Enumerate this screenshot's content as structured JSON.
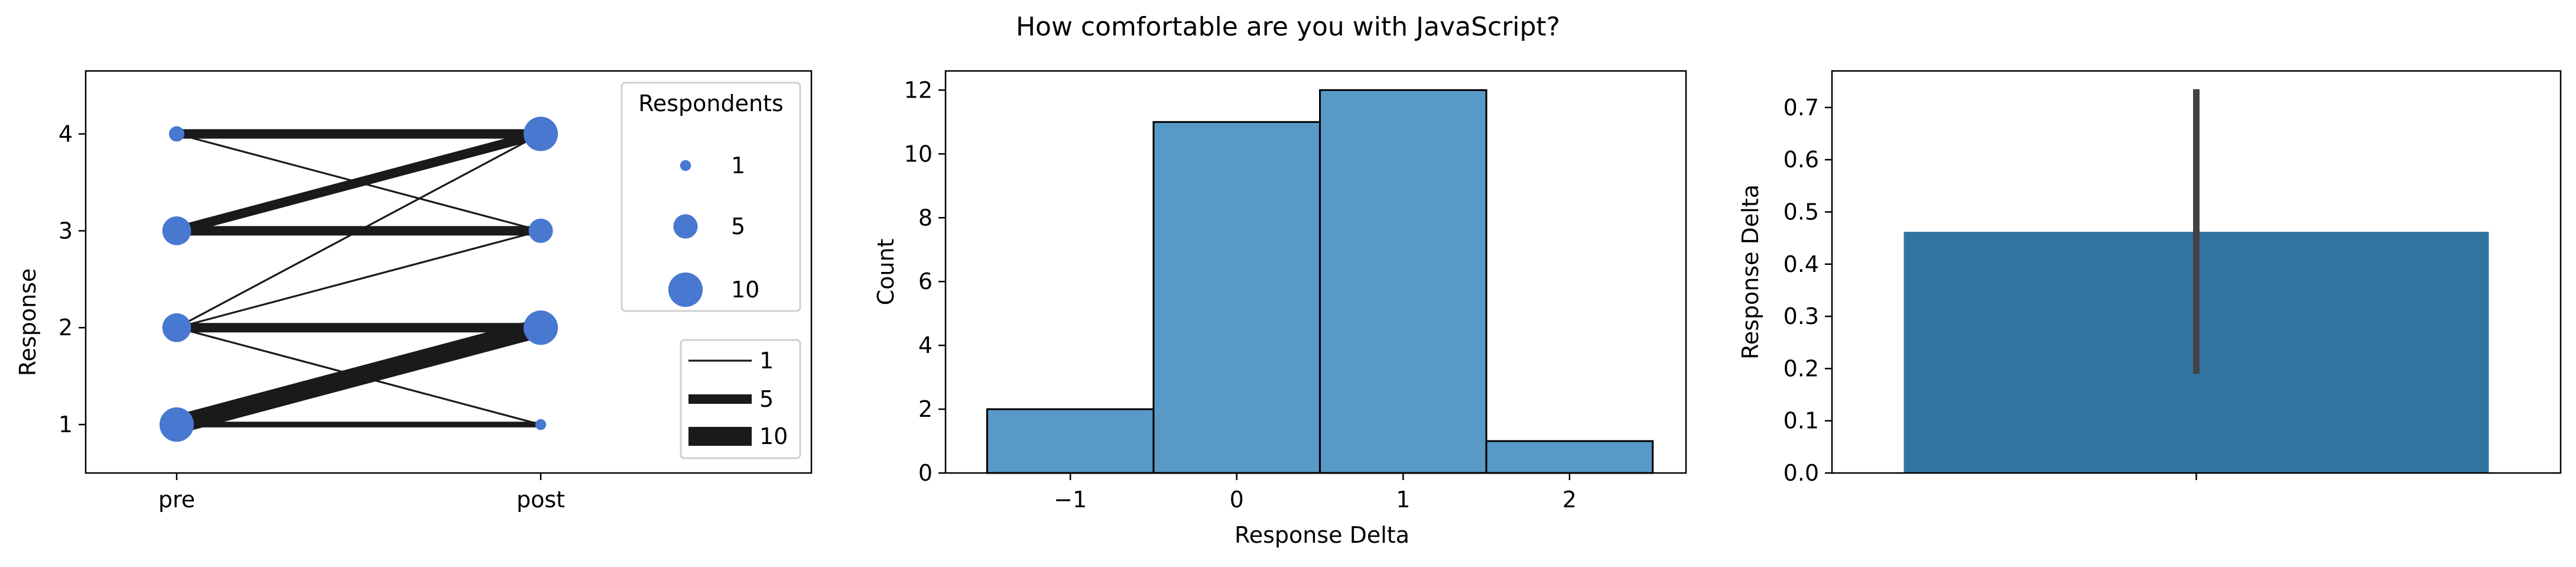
{
  "figure": {
    "title": "How comfortable are you with JavaScript?"
  },
  "colors": {
    "bubble": "#4878d0",
    "line": "#1a1a1a",
    "hist": "#5799c7",
    "bar": "#3274a1",
    "errbar": "#424242"
  },
  "chart_data": [
    {
      "type": "scatter",
      "x_categories": [
        "pre",
        "post"
      ],
      "ylabel": "Response",
      "xlabel": "",
      "ylim": [
        0.5,
        4.65
      ],
      "yticks": [
        1,
        2,
        3,
        4
      ],
      "points": [
        {
          "x": "pre",
          "y": 4,
          "count": 2
        },
        {
          "x": "pre",
          "y": 3,
          "count": 7
        },
        {
          "x": "pre",
          "y": 2,
          "count": 7
        },
        {
          "x": "pre",
          "y": 1,
          "count": 10
        },
        {
          "x": "post",
          "y": 4,
          "count": 10
        },
        {
          "x": "post",
          "y": 3,
          "count": 5
        },
        {
          "x": "post",
          "y": 2,
          "count": 10
        },
        {
          "x": "post",
          "y": 1,
          "count": 1
        }
      ],
      "transitions": [
        {
          "from": 4,
          "to": 4,
          "count": 5
        },
        {
          "from": 4,
          "to": 3,
          "count": 1
        },
        {
          "from": 3,
          "to": 4,
          "count": 5
        },
        {
          "from": 3,
          "to": 3,
          "count": 5
        },
        {
          "from": 2,
          "to": 4,
          "count": 1
        },
        {
          "from": 2,
          "to": 3,
          "count": 1
        },
        {
          "from": 2,
          "to": 2,
          "count": 5
        },
        {
          "from": 2,
          "to": 1,
          "count": 1
        },
        {
          "from": 1,
          "to": 2,
          "count": 10
        },
        {
          "from": 1,
          "to": 1,
          "count": 3
        }
      ],
      "size_legend": {
        "title": "Respondents",
        "entries": [
          {
            "label": "1",
            "value": 1
          },
          {
            "label": "5",
            "value": 5
          },
          {
            "label": "10",
            "value": 10
          }
        ]
      },
      "width_legend": {
        "entries": [
          {
            "label": "1",
            "value": 1
          },
          {
            "label": "5",
            "value": 5
          },
          {
            "label": "10",
            "value": 10
          }
        ]
      }
    },
    {
      "type": "bar",
      "subtype": "histogram",
      "categories": [
        "-1",
        "0",
        "1",
        "2"
      ],
      "bins": [
        -1,
        0,
        1,
        2
      ],
      "values": [
        2,
        11,
        12,
        1
      ],
      "xlabel": "Response Delta",
      "ylabel": "Count",
      "xticks": [
        "−1",
        "0",
        "1",
        "2"
      ],
      "xlim": [
        -1.75,
        2.7
      ],
      "ylim": [
        0,
        12.6
      ],
      "yticks": [
        0,
        2,
        4,
        6,
        8,
        10,
        12
      ]
    },
    {
      "type": "bar",
      "categories": [
        ""
      ],
      "values": [
        0.462
      ],
      "error": {
        "low": 0.19,
        "high": 0.735
      },
      "xlabel": "",
      "ylabel": "Response Delta",
      "ylim": [
        0,
        0.77
      ],
      "yticks": [
        "0.0",
        "0.1",
        "0.2",
        "0.3",
        "0.4",
        "0.5",
        "0.6",
        "0.7"
      ]
    }
  ]
}
